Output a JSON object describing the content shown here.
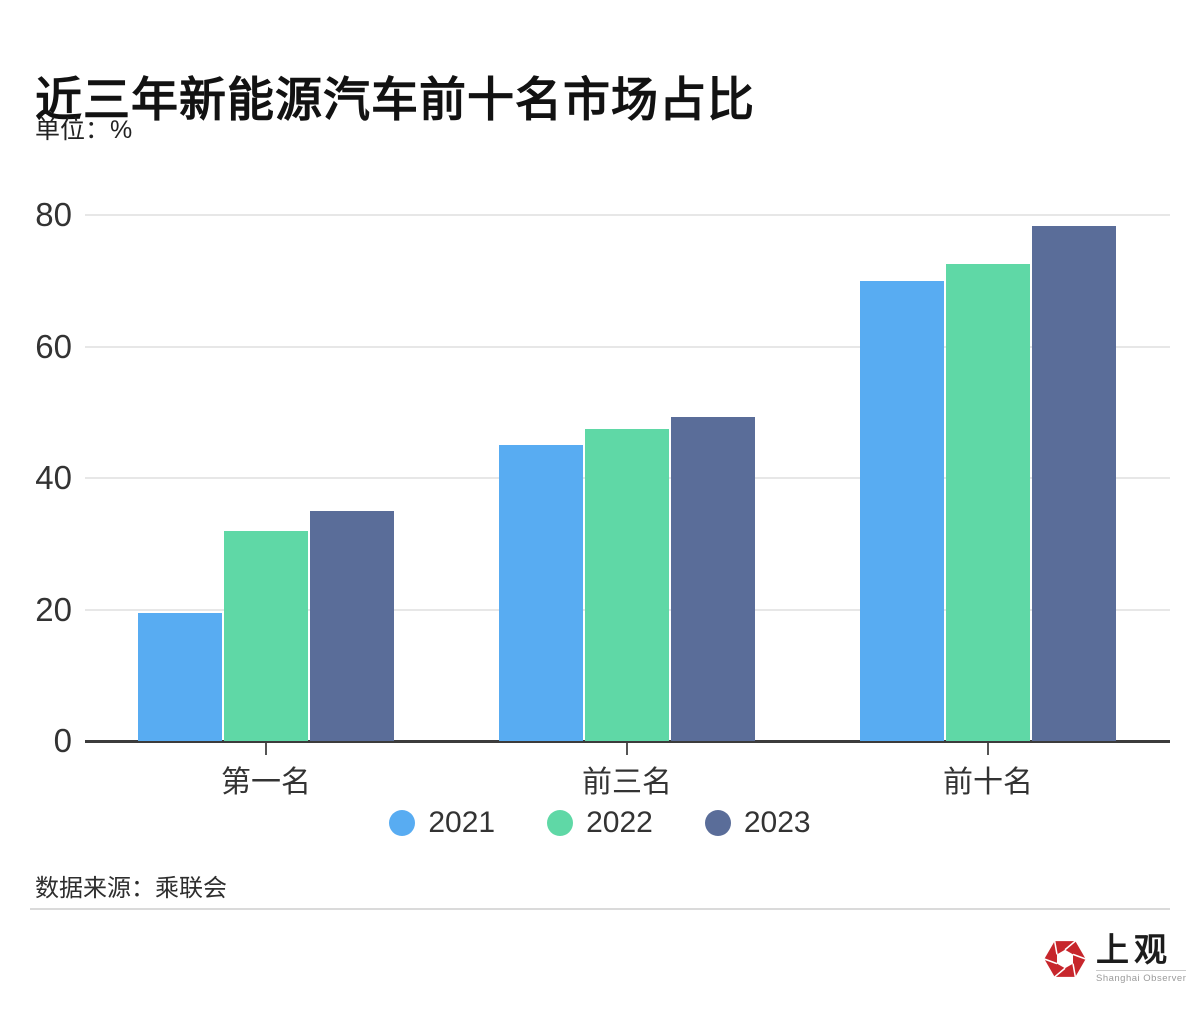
{
  "header": {
    "title": "近三年新能源汽车前十名市场占比",
    "unit_label": "单位：%"
  },
  "chart_data": {
    "type": "bar",
    "categories": [
      "第一名",
      "前三名",
      "前十名"
    ],
    "series": [
      {
        "name": "2021",
        "color": "#58ACF2",
        "values": [
          19.5,
          45.0,
          70.0
        ]
      },
      {
        "name": "2022",
        "color": "#5FD8A6",
        "values": [
          32.0,
          47.5,
          72.5
        ]
      },
      {
        "name": "2023",
        "color": "#5A6D99",
        "values": [
          35.0,
          49.3,
          78.3
        ]
      }
    ],
    "ylabel": "%",
    "ylim": [
      0,
      80
    ],
    "yticks": [
      0,
      20,
      40,
      60,
      80
    ],
    "grid": "horizontal",
    "legend_position": "bottom"
  },
  "footer": {
    "source": "数据来源：乘联会"
  },
  "logo": {
    "cn": "上观",
    "en": "Shanghai Observer",
    "accent_color": "#C7262C"
  }
}
